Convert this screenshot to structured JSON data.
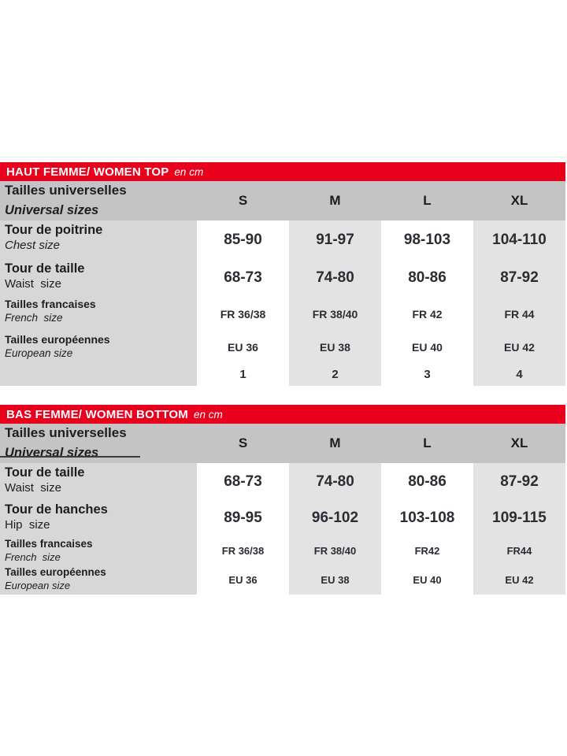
{
  "colors": {
    "red": "#e8001c",
    "header_gray": "#c4c4c4",
    "label_gray": "#d7d7d7",
    "alt_gray": "#e3e3e3",
    "white_col": "#ffffff",
    "text_dark": "#1d1d22",
    "value_dark": "#2c2c34",
    "divider": "#ececec"
  },
  "tables": [
    {
      "title": "HAUT FEMME/ WOMEN TOP",
      "unit": "en cm",
      "header": {
        "label_fr": "Tailles universelles",
        "label_en": "Universal sizes",
        "sizes": [
          "S",
          "M",
          "L",
          "XL"
        ]
      },
      "rows": [
        {
          "label_fr": "Tour de poitrine",
          "label_en": "Chest size",
          "values": [
            "85-90",
            "91-97",
            "98-103",
            "104-110"
          ]
        },
        {
          "label_fr": "Tour de taille",
          "label_en": "Waist  size",
          "values": [
            "68-73",
            "74-80",
            "80-86",
            "87-92"
          ]
        },
        {
          "label_fr": "Tailles francaises",
          "label_en": "French  size",
          "values": [
            "FR 36/38",
            "FR 38/40",
            "FR 42",
            "FR 44"
          ]
        },
        {
          "label_fr": "Tailles européennes",
          "label_en": "European size",
          "values": [
            "EU 36",
            "EU 38",
            "EU 40",
            "EU 42"
          ]
        },
        {
          "label_fr": "",
          "label_en": "",
          "values": [
            "1",
            "2",
            "3",
            "4"
          ]
        }
      ]
    },
    {
      "title": "BAS FEMME/ WOMEN BOTTOM",
      "unit": "en cm",
      "header": {
        "label_fr": "Tailles universelles",
        "label_en": "Universal sizes",
        "sizes": [
          "S",
          "M",
          "L",
          "XL"
        ]
      },
      "rows": [
        {
          "label_fr": "Tour de taille",
          "label_en": "Waist  size",
          "values": [
            "68-73",
            "74-80",
            "80-86",
            "87-92"
          ]
        },
        {
          "label_fr": "Tour de hanches",
          "label_en": "Hip  size",
          "values": [
            "89-95",
            "96-102",
            "103-108",
            "109-115"
          ]
        },
        {
          "label_fr": "Tailles francaises",
          "label_en": "French  size",
          "values": [
            "FR 36/38",
            "FR 38/40",
            "FR42",
            "FR44"
          ]
        },
        {
          "label_fr": "Tailles européennes",
          "label_en": "European size",
          "values": [
            "EU 36",
            "EU 38",
            "EU 40",
            "EU 42"
          ]
        }
      ]
    }
  ]
}
